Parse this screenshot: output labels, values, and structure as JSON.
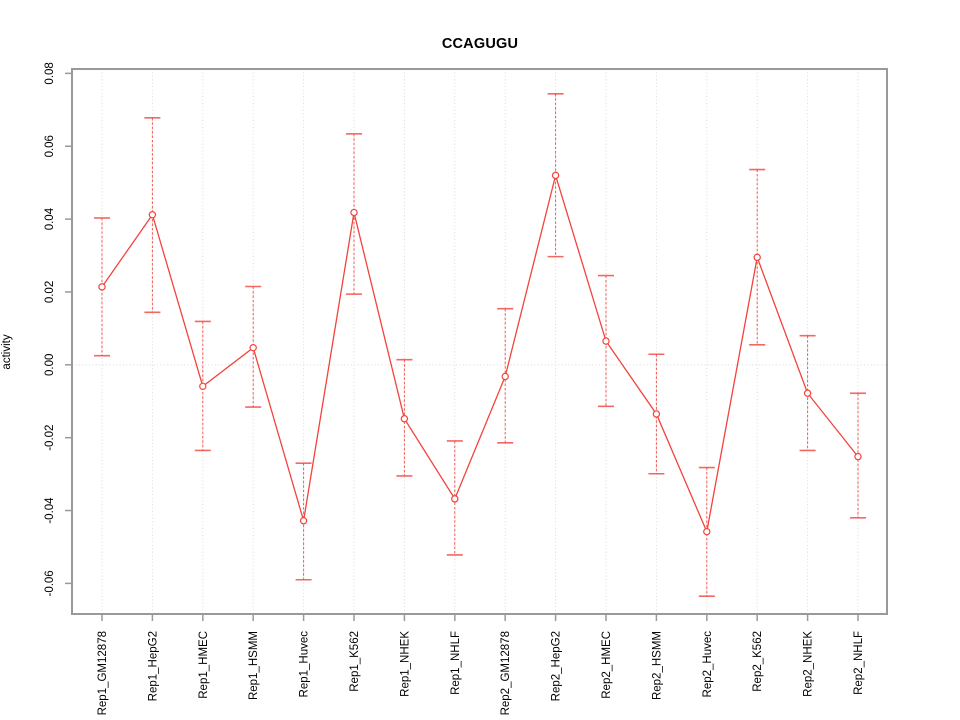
{
  "chart_data": {
    "type": "line",
    "title": "CCAGUGU",
    "xlabel": "",
    "ylabel": "activity",
    "ylim": [
      -0.0684,
      0.0812
    ],
    "yticks": [
      0.08,
      0.06,
      0.04,
      0.02,
      0.0,
      -0.02,
      -0.04,
      -0.06
    ],
    "grid": "vertical dotted gridline at each category; dotted horizontal line at y=0",
    "legend_position": "none",
    "point_marker": "open-circle",
    "error_bars": true,
    "series_color": "#f2433c",
    "gridline_color": "#d9d9d9",
    "box_color": "#999999",
    "categories": [
      "Rep1_GM12878",
      "Rep1_HepG2",
      "Rep1_HMEC",
      "Rep1_HSMM",
      "Rep1_Huvec",
      "Rep1_K562",
      "Rep1_NHEK",
      "Rep1_NHLF",
      "Rep2_GM12878",
      "Rep2_HepG2",
      "Rep2_HMEC",
      "Rep2_HSMM",
      "Rep2_Huvec",
      "Rep2_K562",
      "Rep2_NHEK",
      "Rep2_NHLF"
    ],
    "series": [
      {
        "name": "activity",
        "values": [
          0.0214,
          0.0412,
          -0.0059,
          0.0047,
          -0.0428,
          0.0418,
          -0.0148,
          -0.0368,
          -0.0032,
          0.052,
          0.0065,
          -0.0135,
          -0.0458,
          0.0295,
          -0.0078,
          -0.0252
        ],
        "upper": [
          0.0403,
          0.0678,
          0.0119,
          0.0215,
          -0.027,
          0.0634,
          0.0014,
          -0.0209,
          0.0154,
          0.0744,
          0.0245,
          0.0029,
          -0.0282,
          0.0536,
          0.008,
          -0.0078
        ],
        "lower": [
          0.0025,
          0.0144,
          -0.0235,
          -0.0116,
          -0.059,
          0.0194,
          -0.0305,
          -0.0522,
          -0.0214,
          0.0297,
          -0.0114,
          -0.0299,
          -0.0635,
          0.0055,
          -0.0235,
          -0.042
        ]
      }
    ]
  }
}
